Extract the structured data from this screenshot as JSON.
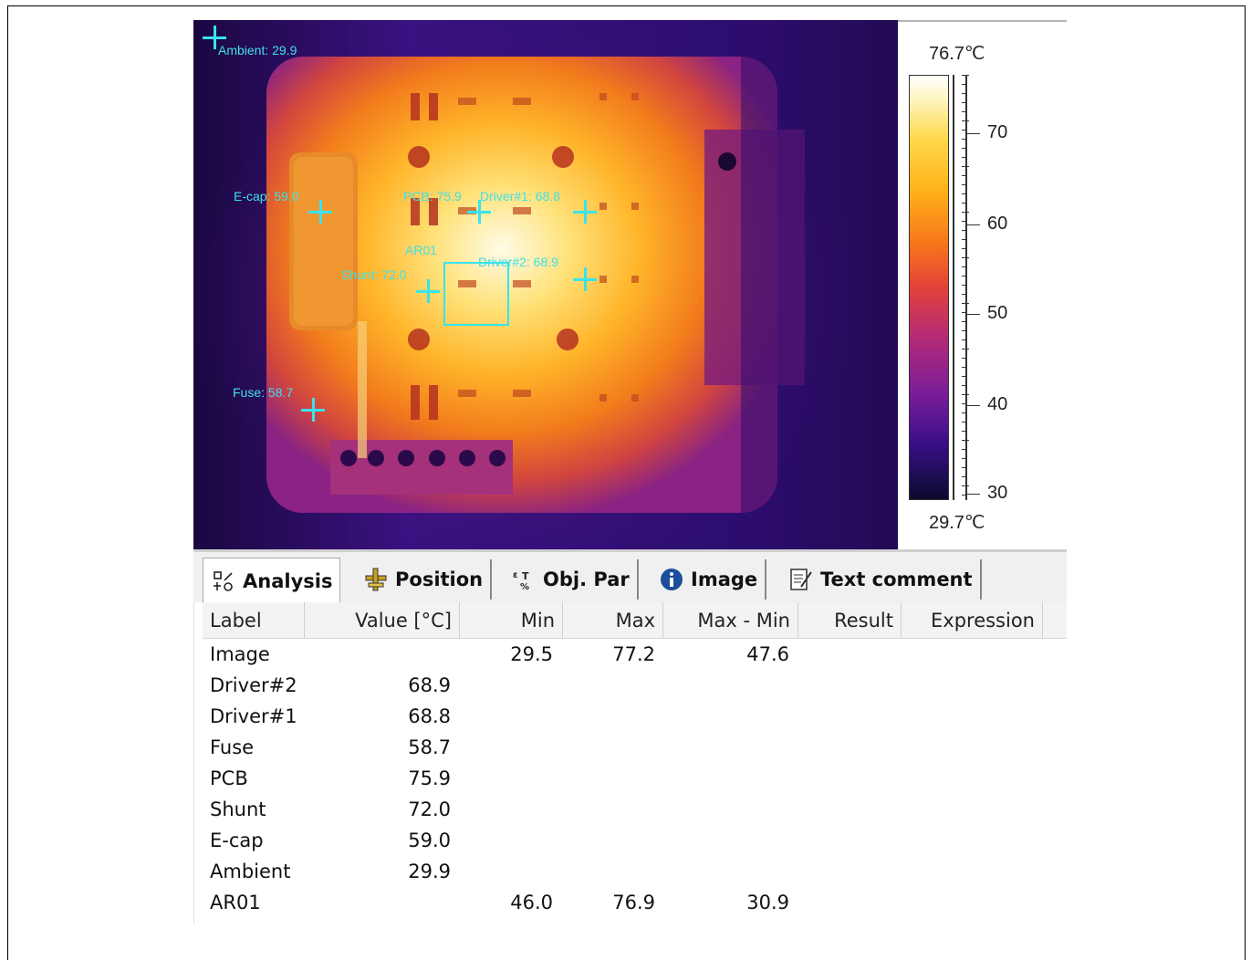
{
  "thermal": {
    "markers": [
      {
        "name": "Ambient",
        "label": "Ambient: 29.9"
      },
      {
        "name": "E-cap",
        "label": "E-cap: 59.0"
      },
      {
        "name": "PCB",
        "label": "PCB: 75.9"
      },
      {
        "name": "Driver#1",
        "label": "Driver#1: 68.8"
      },
      {
        "name": "Driver#2",
        "label": "Driver#2: 68.9"
      },
      {
        "name": "Shunt",
        "label": "Shunt: 72.0"
      },
      {
        "name": "Fuse",
        "label": "Fuse: 58.7"
      }
    ],
    "roi_label": "AR01"
  },
  "scale": {
    "max": "76.7℃",
    "min": "29.7℃",
    "ticks": [
      "70",
      "60",
      "50",
      "40",
      "30"
    ]
  },
  "tabs": [
    {
      "label": "Analysis",
      "icon": "analysis-icon",
      "active": true
    },
    {
      "label": "Position",
      "icon": "position-icon",
      "active": false
    },
    {
      "label": "Obj. Par",
      "icon": "object-parameters-icon",
      "active": false
    },
    {
      "label": "Image",
      "icon": "info-icon",
      "active": false
    },
    {
      "label": "Text comment",
      "icon": "text-comment-icon",
      "active": false
    }
  ],
  "table": {
    "columns": [
      "Label",
      "Value [°C]",
      "Min",
      "Max",
      "Max - Min",
      "Result",
      "Expression"
    ],
    "rows": [
      {
        "label": "Image",
        "value": "",
        "min": "29.5",
        "max": "77.2",
        "diff": "47.6"
      },
      {
        "label": "Driver#2",
        "value": "68.9",
        "min": "",
        "max": "",
        "diff": ""
      },
      {
        "label": "Driver#1",
        "value": "68.8",
        "min": "",
        "max": "",
        "diff": ""
      },
      {
        "label": "Fuse",
        "value": "58.7",
        "min": "",
        "max": "",
        "diff": ""
      },
      {
        "label": "PCB",
        "value": "75.9",
        "min": "",
        "max": "",
        "diff": ""
      },
      {
        "label": "Shunt",
        "value": "72.0",
        "min": "",
        "max": "",
        "diff": ""
      },
      {
        "label": "E-cap",
        "value": "59.0",
        "min": "",
        "max": "",
        "diff": ""
      },
      {
        "label": "Ambient",
        "value": "29.9",
        "min": "",
        "max": "",
        "diff": ""
      },
      {
        "label": "AR01",
        "value": "",
        "min": "46.0",
        "max": "76.9",
        "diff": "30.9"
      }
    ]
  }
}
